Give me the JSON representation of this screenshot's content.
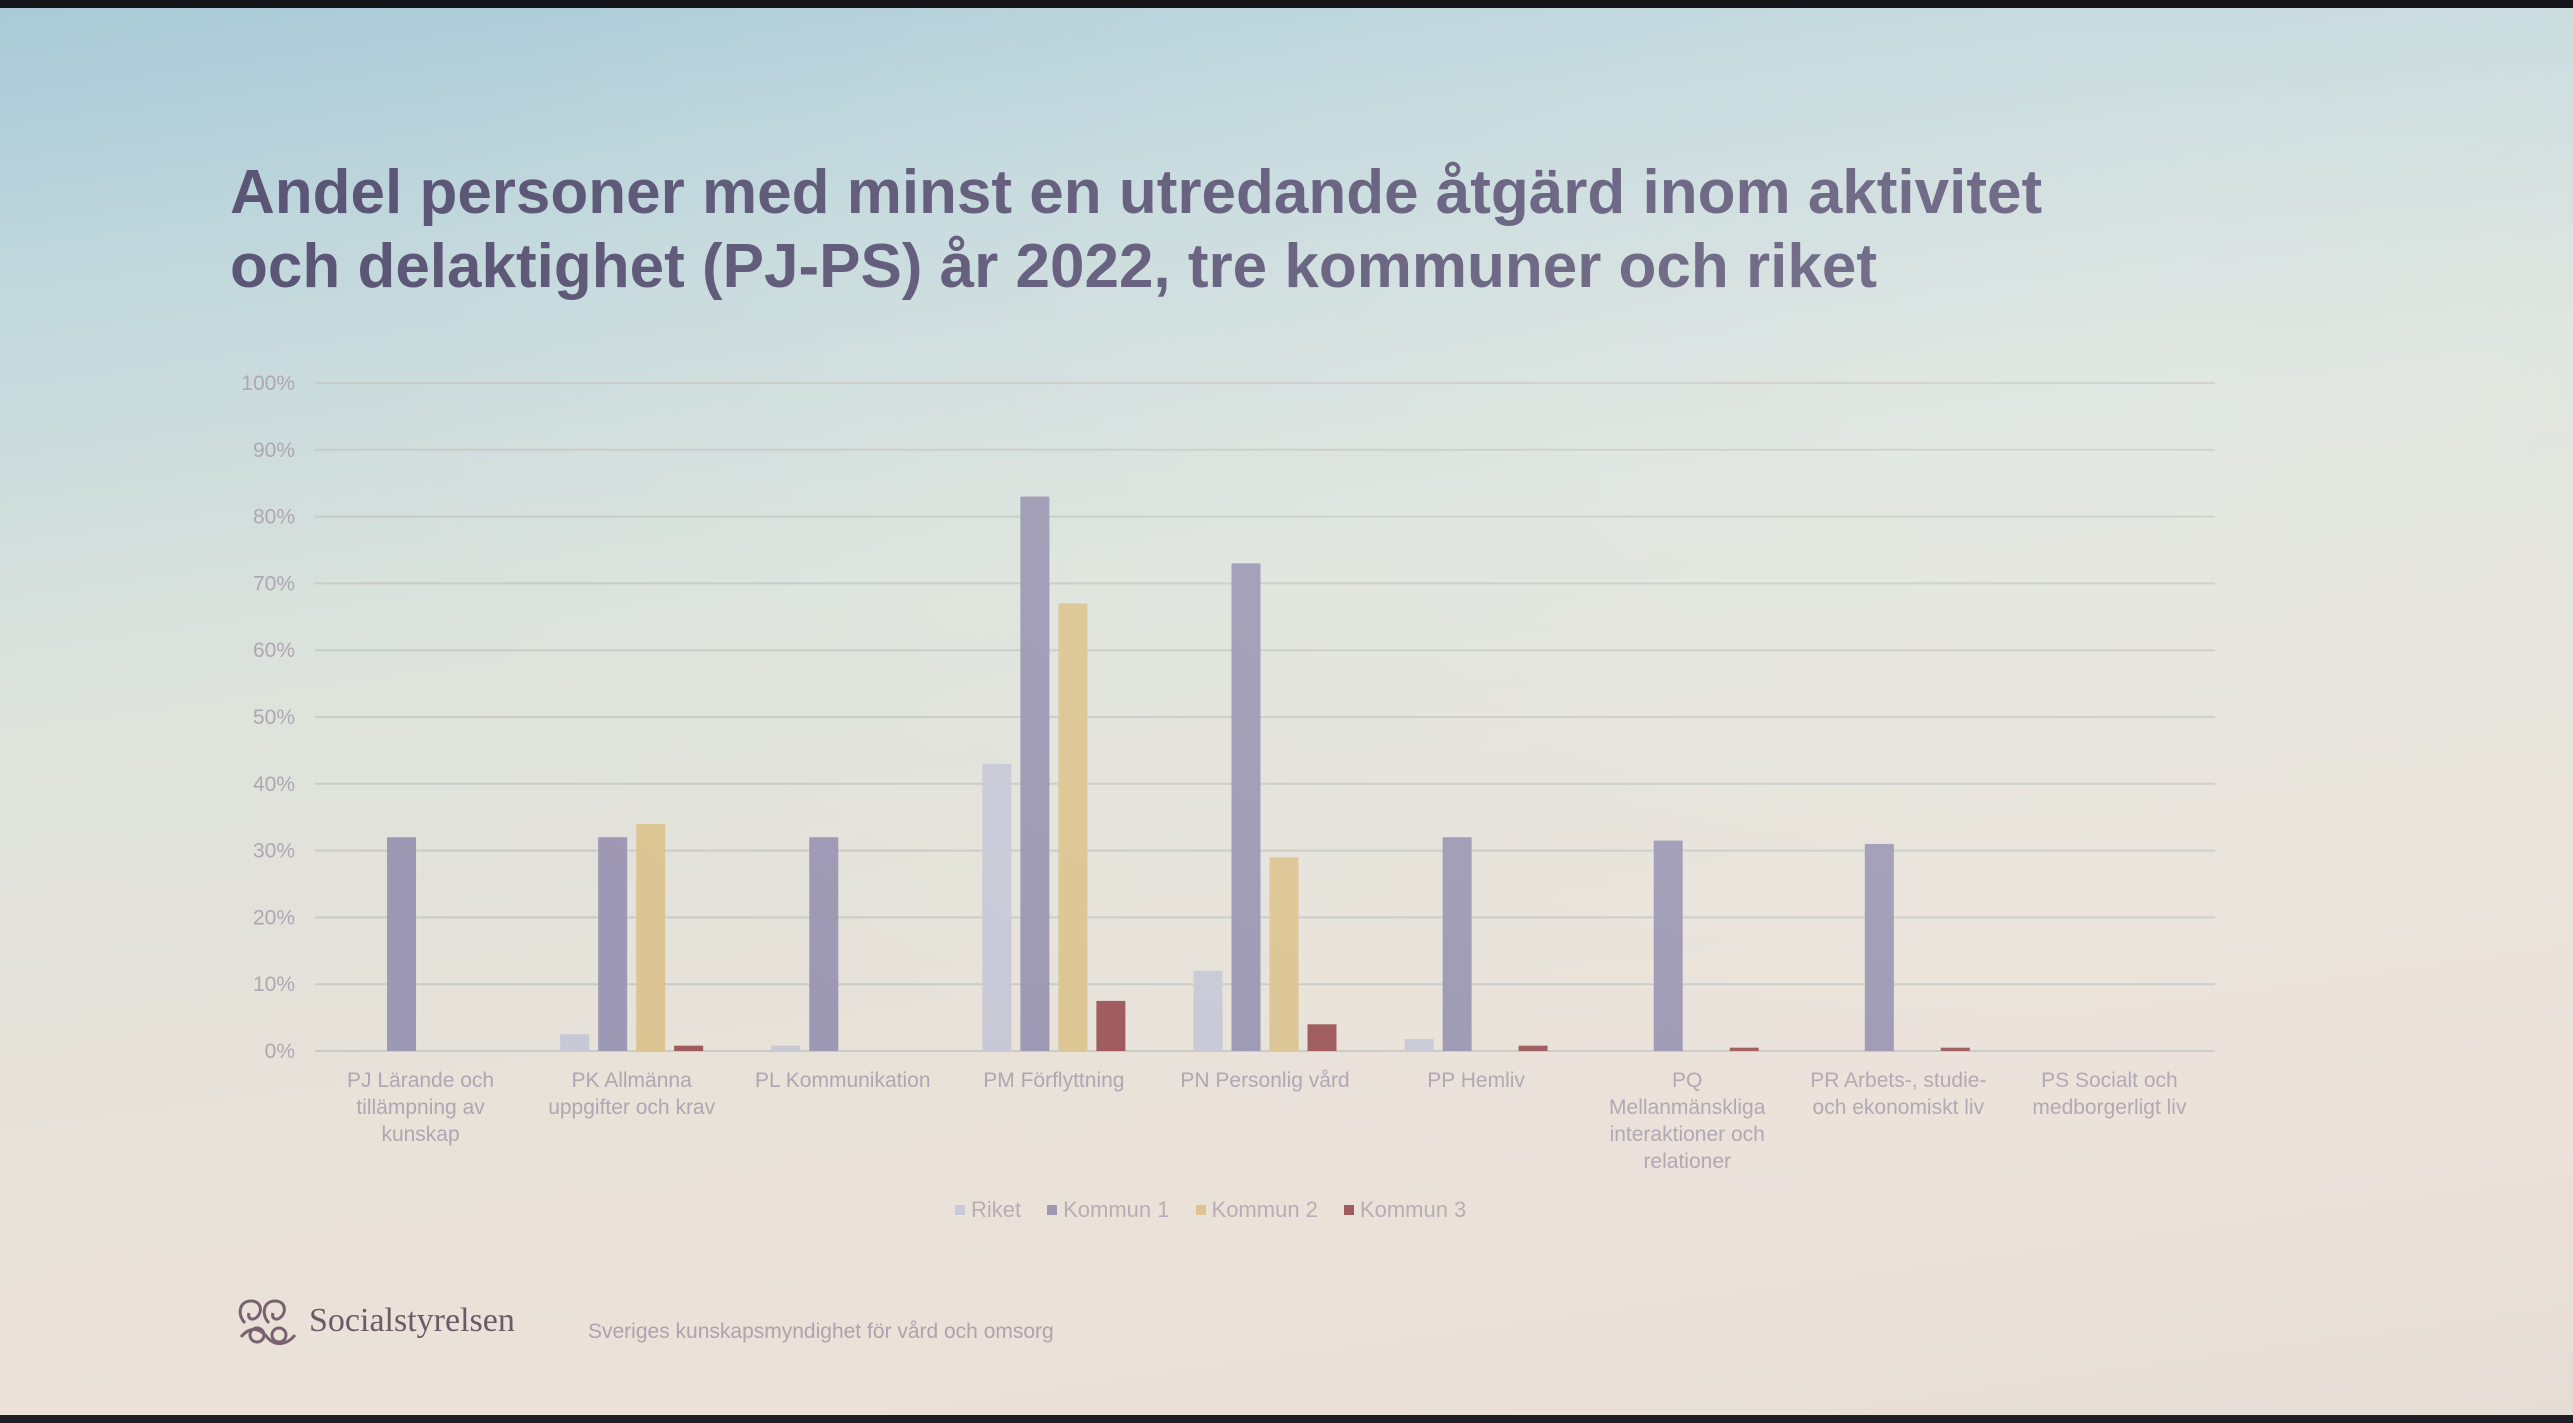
{
  "slide": {
    "title_lines": [
      "Andel personer med minst en utredande åtgärd inom aktivitet",
      "och delaktighet (PJ-PS) år 2022, tre kommuner och riket"
    ],
    "logo_text": "Socialstyrelsen",
    "tagline": "Sveriges kunskapsmyndighet för vård och omsorg"
  },
  "colors": {
    "Riket": "#c7c9d6",
    "Kommun 1": "#9d98b3",
    "Kommun 2": "#dcc593",
    "Kommun 3": "#9e5a5c",
    "gridline": "#c9cbc7",
    "axis_text": "#aea7b2"
  },
  "chart_data": {
    "type": "bar",
    "title": "Andel personer med minst en utredande åtgärd inom aktivitet och delaktighet (PJ-PS) år 2022, tre kommuner och riket",
    "categories": [
      [
        "PJ Lärande och",
        "tillämpning av",
        "kunskap"
      ],
      [
        "PK Allmänna",
        "uppgifter och krav"
      ],
      [
        "PL Kommunikation"
      ],
      [
        "PM Förflyttning"
      ],
      [
        "PN Personlig vård"
      ],
      [
        "PP Hemliv"
      ],
      [
        "PQ",
        "Mellanmänskliga",
        "interaktioner och",
        "relationer"
      ],
      [
        "PR Arbets-, studie-",
        "och ekonomiskt liv"
      ],
      [
        "PS Socialt och",
        "medborgerligt liv"
      ]
    ],
    "series": [
      {
        "name": "Riket",
        "values": [
          0,
          2.5,
          0.8,
          43,
          12,
          1.8,
          0,
          0,
          0
        ]
      },
      {
        "name": "Kommun 1",
        "values": [
          32,
          32,
          32,
          83,
          73,
          32,
          31.5,
          31,
          0
        ]
      },
      {
        "name": "Kommun 2",
        "values": [
          0,
          34,
          0,
          67,
          29,
          0,
          0,
          0,
          0
        ]
      },
      {
        "name": "Kommun 3",
        "values": [
          0,
          0.8,
          0,
          7.5,
          4,
          0.8,
          0.5,
          0.5,
          0
        ]
      }
    ],
    "ylim": [
      0,
      100
    ],
    "yticks": [
      "0%",
      "10%",
      "20%",
      "30%",
      "40%",
      "50%",
      "60%",
      "70%",
      "80%",
      "90%",
      "100%"
    ],
    "xlabel": "",
    "ylabel": "",
    "legend_position": "bottom",
    "grid": true
  }
}
